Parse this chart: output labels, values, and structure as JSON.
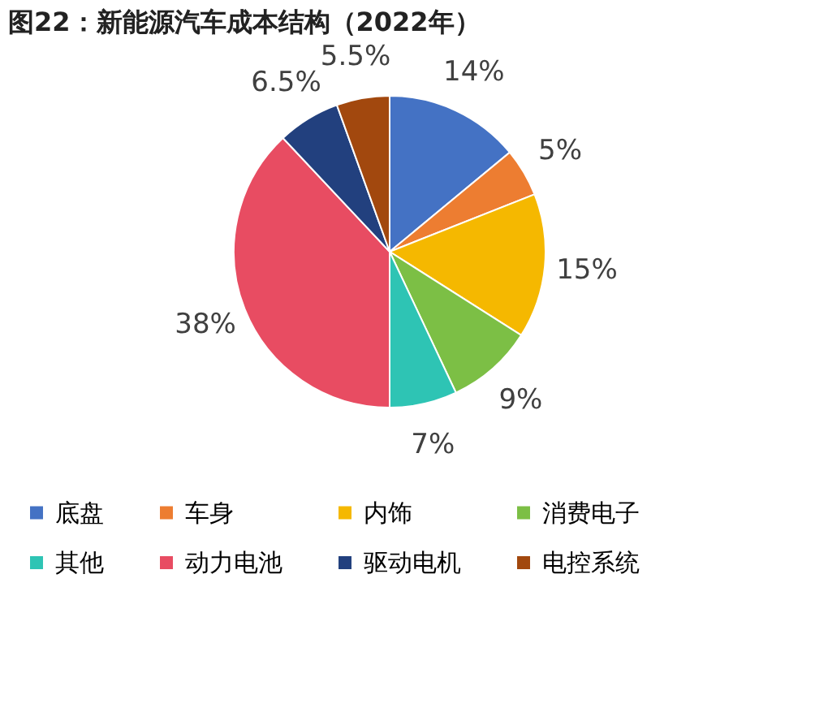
{
  "chart_data": {
    "type": "pie",
    "title": "图22：新能源汽车成本结构（2022年）",
    "categories": [
      "底盘",
      "车身",
      "内饰",
      "消费电子",
      "其他",
      "动力电池",
      "驱动电机",
      "电控系统"
    ],
    "values": [
      14,
      5,
      15,
      9,
      7,
      38,
      6.5,
      5.5
    ],
    "value_labels": [
      "14%",
      "5%",
      "15%",
      "9%",
      "7%",
      "38%",
      "6.5%",
      "5.5%"
    ],
    "colors": [
      "#4472c4",
      "#ed7d31",
      "#f5b800",
      "#7cbf45",
      "#2ec4b4",
      "#e84c62",
      "#22407e",
      "#a2480e"
    ],
    "legend": "bottom"
  }
}
